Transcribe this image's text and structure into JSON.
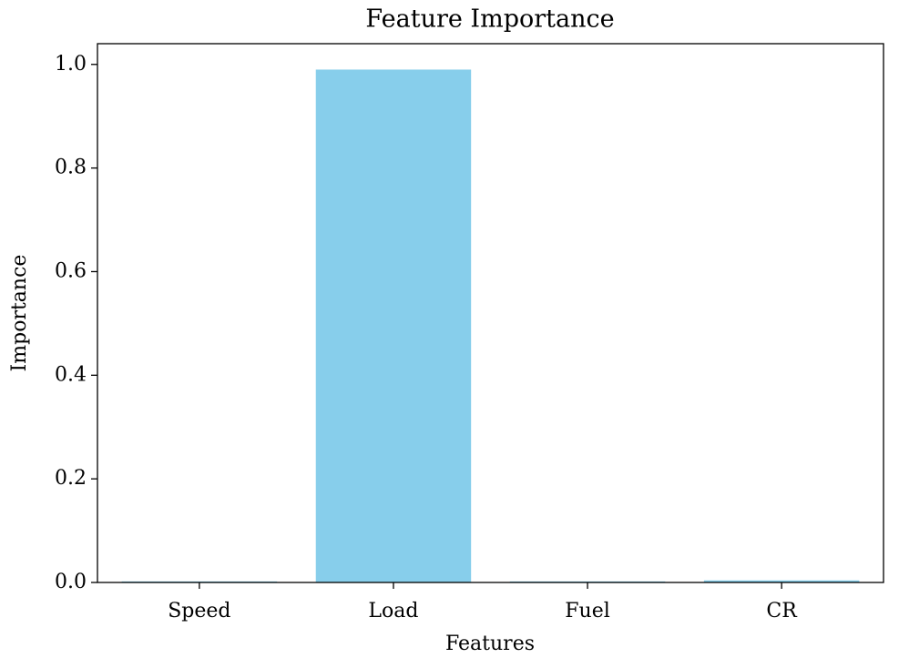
{
  "chart_data": {
    "type": "bar",
    "title": "Feature Importance",
    "x_label": "Features",
    "y_label": "Importance",
    "categories": [
      "Speed",
      "Load",
      "Fuel",
      "CR"
    ],
    "values": [
      0.002,
      0.99,
      0.002,
      0.004
    ],
    "color": "#87ceeb",
    "ylim": [
      0,
      1.04
    ],
    "yticks": [
      {
        "value": 0,
        "label": "0.0"
      },
      {
        "value": 0.2,
        "label": "0.2"
      },
      {
        "value": 0.4,
        "label": "0.4"
      },
      {
        "value": 0.6,
        "label": "0.6"
      },
      {
        "value": 0.8,
        "label": "0.8"
      },
      {
        "value": 1,
        "label": "1.0"
      }
    ],
    "grid": false
  }
}
